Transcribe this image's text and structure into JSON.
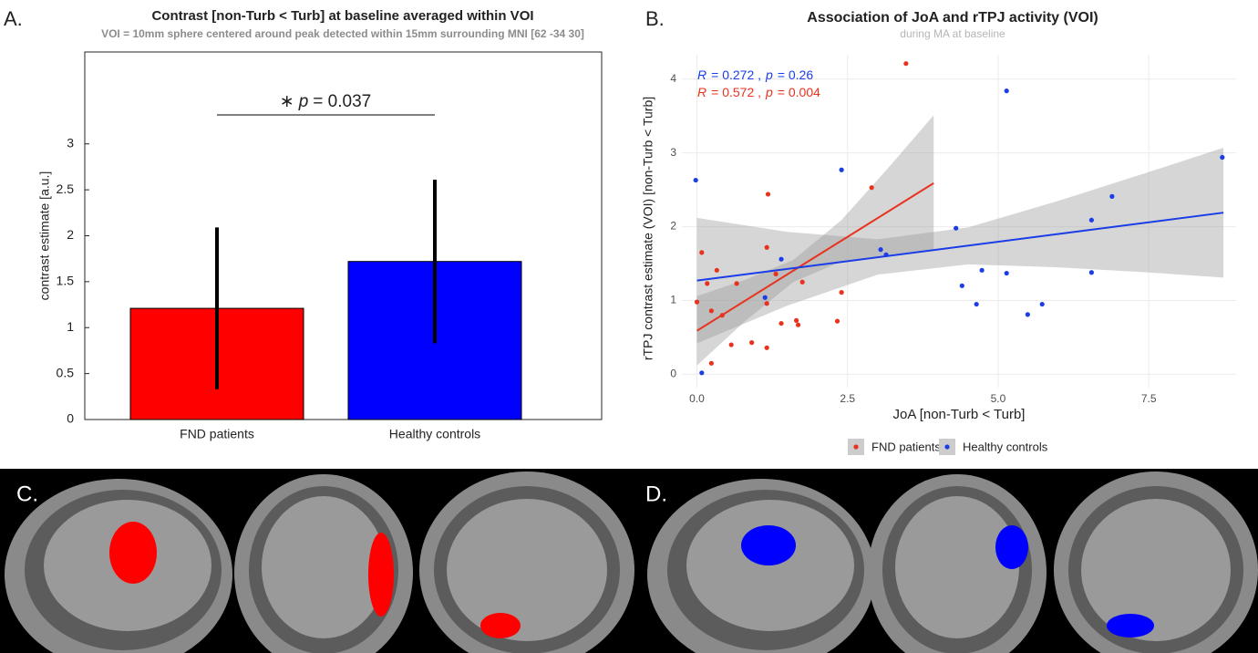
{
  "chart_data": [
    {
      "type": "bar",
      "panel_label": "A.",
      "title": "Contrast [non-Turb < Turb] at baseline averaged within VOI",
      "subtitle": "VOI = 10mm sphere centered around peak detected within 15mm surrounding MNI [62 -34  30]",
      "ylabel": "contrast estimate [a.u.]",
      "categories": [
        "FND patients",
        "Healthy controls"
      ],
      "values": [
        1.21,
        1.72
      ],
      "errors": [
        0.88,
        0.89
      ],
      "colors": [
        "#ff0000",
        "#0000ff"
      ],
      "ylim": [
        0,
        4
      ],
      "yticks": [
        0,
        0.5,
        1,
        1.5,
        2,
        2.5,
        3
      ],
      "annotation": [
        "∗",
        "p",
        "= 0.037"
      ]
    },
    {
      "type": "scatter",
      "panel_label": "B.",
      "title": "Association of JoA and rTPJ activity (VOI)",
      "subtitle": "during MA at baseline",
      "xlabel": "JoA [non-Turb < Turb]",
      "ylabel": "rTPJ contrast estimate (VOI) [non-Turb < Turb]",
      "xlim": [
        -0.25,
        8.95
      ],
      "ylim": [
        -0.18,
        4.33
      ],
      "xticks": [
        {
          "value": 0,
          "label": "0.0"
        },
        2.5,
        {
          "value": 5,
          "label": "5.0"
        },
        7.5
      ],
      "yticks": [
        0,
        1,
        2,
        3,
        4
      ],
      "grid": true,
      "series": [
        {
          "name": "FND patients",
          "color": "#e8321e",
          "x": [
            0.08,
            0.17,
            0.24,
            0.33,
            0.42,
            0.57,
            0.66,
            0.24,
            0.91,
            1.18,
            1.16,
            1.16,
            1.16,
            1.31,
            1.4,
            1.65,
            1.68,
            1.75,
            2.33,
            2.4,
            2.9,
            3.47,
            0.0
          ],
          "values": [
            1.65,
            1.23,
            0.86,
            1.41,
            0.8,
            0.4,
            1.23,
            0.15,
            0.43,
            2.44,
            1.72,
            0.96,
            0.36,
            1.36,
            0.69,
            0.73,
            0.67,
            1.25,
            0.72,
            1.11,
            2.53,
            4.21,
            0.98
          ],
          "fit": {
            "x": [
              0,
              3.93
            ],
            "values": [
              0.59,
              2.59
            ]
          },
          "band": {
            "x": [
              0,
              0.8,
              1.6,
              2.4,
              3.2,
              3.93
            ],
            "lower": [
              0.12,
              0.72,
              1.25,
              1.53,
              1.62,
              1.67
            ],
            "upper": [
              1.06,
              1.28,
              1.55,
              2.09,
              2.82,
              3.51
            ]
          },
          "annotation": [
            "R",
            "= 0.572 ,",
            "p",
            "= 0.004"
          ]
        },
        {
          "name": "Healthy controls",
          "color": "#1a3de8",
          "x": [
            -0.02,
            0.08,
            1.13,
            1.4,
            2.4,
            3.05,
            3.14,
            4.3,
            4.4,
            4.64,
            4.73,
            5.14,
            5.14,
            5.49,
            5.73,
            6.55,
            6.55,
            6.89,
            8.72
          ],
          "values": [
            2.63,
            0.02,
            1.04,
            1.56,
            2.77,
            1.69,
            1.62,
            1.98,
            1.2,
            0.95,
            1.41,
            3.84,
            1.37,
            0.81,
            0.95,
            2.09,
            1.38,
            2.41,
            2.94
          ],
          "fit": {
            "x": [
              0,
              8.74
            ],
            "values": [
              1.27,
              2.19
            ]
          },
          "band": {
            "x": [
              0,
              1.5,
              3,
              4.5,
              6,
              7.5,
              8.74
            ],
            "lower": [
              0.42,
              0.93,
              1.35,
              1.49,
              1.45,
              1.38,
              1.31
            ],
            "upper": [
              2.12,
              1.93,
              1.83,
              1.99,
              2.35,
              2.74,
              3.07
            ]
          },
          "annotation": [
            "R",
            "= 0.272 ,",
            "p",
            "= 0.26"
          ]
        }
      ]
    }
  ],
  "panels": [
    {
      "label": "C."
    },
    {
      "label": "D."
    }
  ]
}
